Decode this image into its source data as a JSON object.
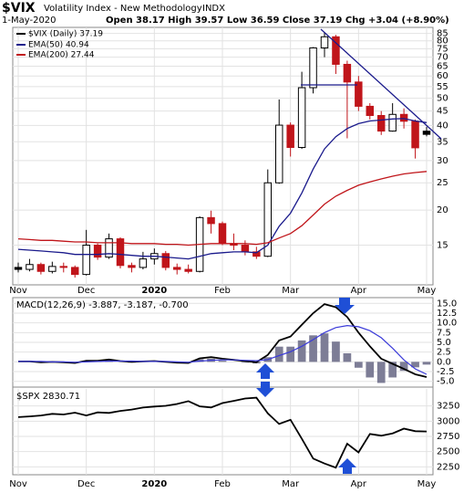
{
  "chart_data": [
    {
      "type": "candlestick",
      "title": "$VIX",
      "subtitle": "Volatility Index - New Methodology",
      "exchange": "INDX",
      "date": "1-May-2020",
      "quote": "Open 38.17  High 39.57  Low 36.59  Close 37.19  Chg +3.04 (+8.90%)",
      "name": "$VIX (Daily) 37.19",
      "color": "#000000",
      "categories": [
        "Nov",
        null,
        null,
        null,
        null,
        null,
        "Dec",
        null,
        null,
        null,
        null,
        null,
        "2020",
        null,
        null,
        null,
        null,
        null,
        "Feb",
        null,
        null,
        null,
        null,
        null,
        "Mar",
        null,
        null,
        null,
        null,
        null,
        "Apr",
        null,
        null,
        null,
        null,
        null,
        "May"
      ],
      "open": [
        12.5,
        12.3,
        12.8,
        12.1,
        12.6,
        12.5,
        11.8,
        15.0,
        13.6,
        15.8,
        12.7,
        12.5,
        13.4,
        14.0,
        12.5,
        12.3,
        12.1,
        18.8,
        17.9,
        15.2,
        15.0,
        14.2,
        13.7,
        25.0,
        40.1,
        33.4,
        54.5,
        75.5,
        82.7,
        66.0,
        57.1,
        46.8,
        43.4,
        38.2,
        43.8,
        41.4,
        38.17
      ],
      "high": [
        13.0,
        13.4,
        13.0,
        13.1,
        13.0,
        12.7,
        17.0,
        15.2,
        16.5,
        16.0,
        13.0,
        14.2,
        14.6,
        14.3,
        12.9,
        12.8,
        19.0,
        19.9,
        18.2,
        16.5,
        15.6,
        14.8,
        27.9,
        49.5,
        41.0,
        62.1,
        76.0,
        85.5,
        84.0,
        68.0,
        60.0,
        48.0,
        45.0,
        48.0,
        46.0,
        42.0,
        39.57
      ],
      "low": [
        12.0,
        12.1,
        11.8,
        11.9,
        12.0,
        11.5,
        11.7,
        13.3,
        13.4,
        12.4,
        12.0,
        12.3,
        12.8,
        12.2,
        11.8,
        11.9,
        12.0,
        16.5,
        15.0,
        14.4,
        13.8,
        13.4,
        13.6,
        24.8,
        31.0,
        33.0,
        52.0,
        70.0,
        61.0,
        36.0,
        45.0,
        42.0,
        37.0,
        38.0,
        39.0,
        30.5,
        36.59
      ],
      "close": [
        12.3,
        12.8,
        12.1,
        12.6,
        12.5,
        11.8,
        15.0,
        13.6,
        15.8,
        12.7,
        12.5,
        13.4,
        14.0,
        12.5,
        12.3,
        12.1,
        18.8,
        17.9,
        15.2,
        15.0,
        14.2,
        13.7,
        25.0,
        40.1,
        33.4,
        54.5,
        75.5,
        82.7,
        66.0,
        57.1,
        46.8,
        43.4,
        38.2,
        43.8,
        41.4,
        33.3,
        37.19
      ],
      "series": [
        {
          "name": "EMA(50) 40.94",
          "color": "#1a1a8c",
          "values": [
            14.5,
            14.4,
            14.3,
            14.2,
            14.1,
            13.9,
            13.9,
            13.9,
            14.0,
            13.9,
            13.8,
            13.7,
            13.7,
            13.6,
            13.5,
            13.4,
            13.7,
            14.0,
            14.1,
            14.2,
            14.2,
            14.1,
            15.0,
            17.5,
            19.5,
            23.0,
            28.0,
            33.0,
            36.5,
            39.0,
            40.6,
            41.5,
            41.8,
            42.2,
            42.3,
            41.5,
            40.94
          ]
        },
        {
          "name": "EMA(200) 27.44",
          "color": "#c0151a",
          "values": [
            15.8,
            15.7,
            15.6,
            15.6,
            15.5,
            15.4,
            15.4,
            15.3,
            15.3,
            15.3,
            15.2,
            15.2,
            15.2,
            15.1,
            15.1,
            15.0,
            15.1,
            15.2,
            15.2,
            15.2,
            15.2,
            15.1,
            15.3,
            15.9,
            16.5,
            17.6,
            19.2,
            21.0,
            22.4,
            23.5,
            24.5,
            25.2,
            25.8,
            26.4,
            26.9,
            27.2,
            27.44
          ]
        }
      ],
      "log_scale": true,
      "ylim": [
        11,
        88
      ],
      "yticks": [
        15,
        20,
        25,
        30,
        35,
        40,
        45,
        50,
        55,
        60,
        65,
        70,
        75,
        80,
        85
      ],
      "grid": true
    },
    {
      "type": "macd",
      "label": "MACD(12,26,9) -3.887, -3.187, -0.700",
      "series": [
        {
          "color": "#000000",
          "values": [
            0.1,
            0.1,
            -0.1,
            0.0,
            -0.1,
            -0.3,
            0.3,
            0.3,
            0.6,
            0.2,
            0.0,
            0.1,
            0.2,
            0.0,
            -0.2,
            -0.3,
            0.9,
            1.2,
            0.8,
            0.5,
            0.2,
            -0.1,
            1.8,
            5.5,
            6.5,
            9.5,
            12.5,
            14.8,
            14.0,
            11.5,
            7.5,
            4.0,
            0.8,
            -0.5,
            -1.8,
            -3.2,
            -3.887
          ]
        },
        {
          "color": "#3b3bd9",
          "values": [
            0.1,
            0.1,
            0.1,
            0.0,
            0.0,
            -0.1,
            0.0,
            0.1,
            0.2,
            0.2,
            0.2,
            0.1,
            0.1,
            0.1,
            0.0,
            -0.1,
            0.2,
            0.4,
            0.5,
            0.5,
            0.4,
            0.3,
            0.6,
            1.6,
            2.6,
            4.0,
            5.7,
            7.5,
            8.8,
            9.3,
            9.0,
            8.0,
            6.2,
            3.5,
            0.5,
            -1.8,
            -3.187
          ]
        }
      ],
      "histogram": {
        "color": "#7d7d96",
        "values": [
          0,
          0,
          -0.2,
          0,
          -0.1,
          -0.2,
          0.3,
          0.2,
          0.4,
          0,
          -0.2,
          0,
          0.1,
          -0.1,
          -0.2,
          -0.2,
          0.7,
          0.8,
          0.3,
          0,
          -0.2,
          -0.4,
          1.2,
          3.9,
          3.9,
          5.5,
          6.8,
          7.3,
          5.2,
          2.2,
          -1.5,
          -4.0,
          -5.4,
          -4.0,
          -2.3,
          -1.4,
          -0.7
        ]
      },
      "ylim": [
        -6,
        16
      ],
      "yticks": [
        {
          "value": -5,
          "label": "-5.0"
        },
        {
          "value": -2.5,
          "label": "-2.5"
        },
        {
          "value": 0,
          "label": "0.0"
        },
        {
          "value": 2.5,
          "label": "2.5"
        },
        {
          "value": 5,
          "label": "5.0"
        },
        {
          "value": 7.5,
          "label": "7.5"
        },
        {
          "value": 10,
          "label": "10.0"
        },
        {
          "value": 12.5,
          "label": "12.5"
        },
        {
          "value": 15,
          "label": "15.0"
        }
      ],
      "grid": true
    },
    {
      "type": "line",
      "label": "$SPX 2830.71",
      "color": "#000000",
      "categories": [
        "Nov",
        null,
        null,
        null,
        null,
        null,
        "Dec",
        null,
        null,
        null,
        null,
        null,
        "2020",
        null,
        null,
        null,
        null,
        null,
        "Feb",
        null,
        null,
        null,
        null,
        null,
        "Mar",
        null,
        null,
        null,
        null,
        null,
        "Apr",
        null,
        null,
        null,
        null,
        null,
        "May"
      ],
      "values": [
        3066,
        3078,
        3093,
        3120,
        3110,
        3140,
        3093,
        3145,
        3135,
        3168,
        3191,
        3224,
        3240,
        3253,
        3283,
        3329,
        3244,
        3225,
        3297,
        3334,
        3373,
        3386,
        3128,
        2954,
        3023,
        2711,
        2386,
        2304,
        2237,
        2630,
        2488,
        2790,
        2762,
        2800,
        2878,
        2836,
        2830.71
      ],
      "ylim": [
        2150,
        3500
      ],
      "yticks": [
        2250,
        2500,
        2750,
        3000,
        3250
      ],
      "grid": true
    }
  ]
}
